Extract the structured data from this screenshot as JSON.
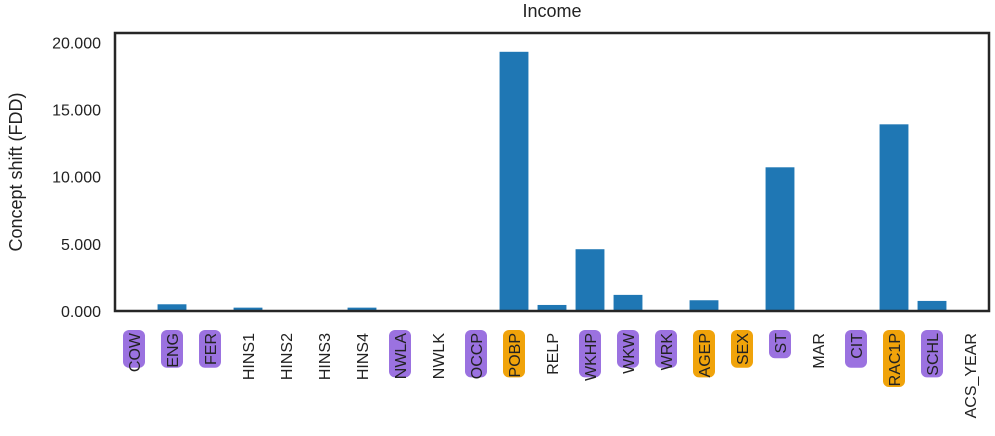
{
  "chart_data": {
    "type": "bar",
    "title": "Income",
    "xlabel": "",
    "ylabel": "Concept shift (FDD)",
    "ylim": [
      0,
      20.7
    ],
    "yticks": [
      "0.000",
      "5.000",
      "10.000",
      "15.000",
      "20.000"
    ],
    "ytick_values": [
      0,
      5,
      10,
      15,
      20
    ],
    "grid": false,
    "categories": [
      "COW",
      "ENG",
      "FER",
      "HINS1",
      "HINS2",
      "HINS3",
      "HINS4",
      "NWLA",
      "NWLK",
      "OCCP",
      "POBP",
      "RELP",
      "WKHP",
      "WKW",
      "WRK",
      "AGEP",
      "SEX",
      "ST",
      "MAR",
      "CIT",
      "RAC1P",
      "SCHL",
      "ACS_YEAR"
    ],
    "values": [
      0.0,
      0.5,
      0.05,
      0.25,
      0.0,
      0.0,
      0.25,
      0.03,
      0.0,
      0.05,
      19.3,
      0.45,
      4.6,
      1.2,
      0.0,
      0.8,
      0.0,
      10.7,
      0.0,
      0.0,
      13.9,
      0.75,
      0.0
    ],
    "label_highlight": [
      "purple",
      "purple",
      "purple",
      "none",
      "none",
      "none",
      "none",
      "purple",
      "none",
      "purple",
      "orange",
      "none",
      "purple",
      "purple",
      "purple",
      "orange",
      "orange",
      "purple",
      "none",
      "purple",
      "orange",
      "purple",
      "none"
    ],
    "colors": {
      "bar": "#1f77b4",
      "purple": "#9b72e0",
      "orange": "#f0a30a",
      "frame": "#262626"
    }
  }
}
